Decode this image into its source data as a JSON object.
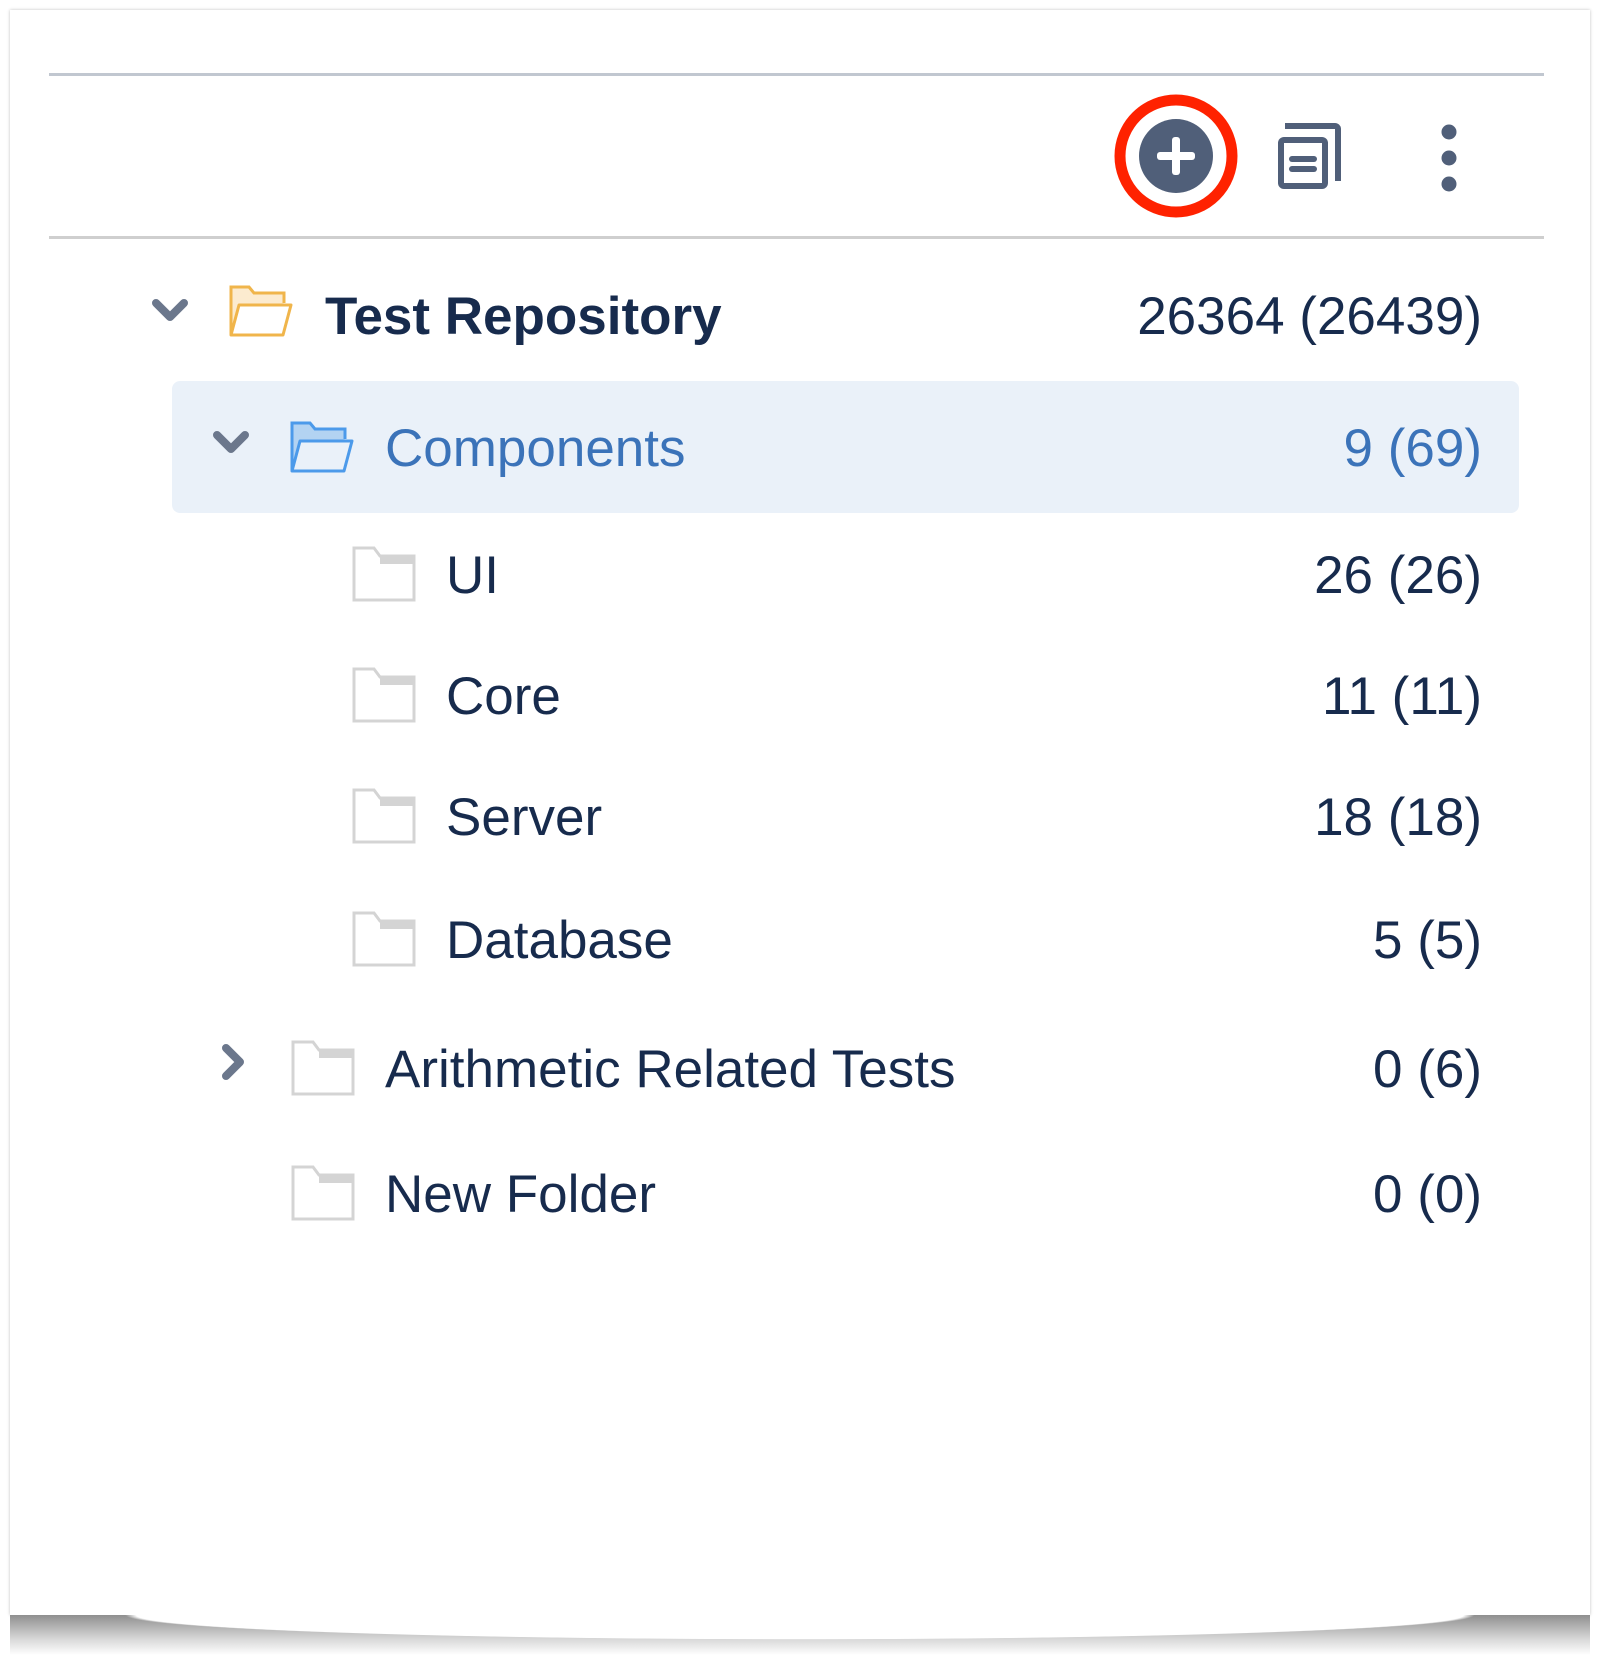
{
  "toolbar": {
    "buttons": [
      {
        "icon": "plus-circle-icon",
        "highlighted": true,
        "highlight_color": "#ff2200"
      },
      {
        "icon": "copy-document-icon"
      },
      {
        "icon": "more-vertical-icon"
      }
    ],
    "icon_color": "#505f79"
  },
  "tree": {
    "root": {
      "label": "Test Repository",
      "count": "26364 (26439)",
      "expanded": true,
      "folder_color": "#f0b54b"
    },
    "items": [
      {
        "label": "Components",
        "count": "9 (69)",
        "expanded": true,
        "selected": true,
        "color": "#3b73b9"
      },
      {
        "label": "UI",
        "count": "26 (26)"
      },
      {
        "label": "Core",
        "count": "11 (11)"
      },
      {
        "label": "Server",
        "count": "18 (18)"
      },
      {
        "label": "Database",
        "count": "5 (5)"
      },
      {
        "label": "Arithmetic Related Tests",
        "count": "0 (6)",
        "expanded": false
      },
      {
        "label": "New Folder",
        "count": "0 (0)"
      }
    ]
  }
}
